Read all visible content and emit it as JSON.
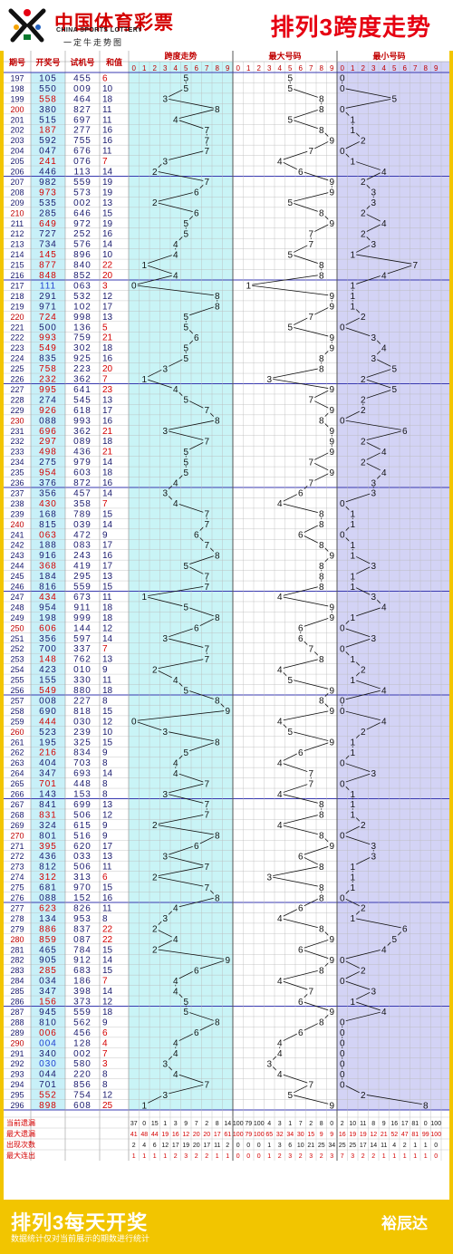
{
  "header": {
    "logo_cn": "中国体育彩票",
    "logo_en": "CHINA SPORTS LOTTERY",
    "logo_slogan": "一定牛走势图",
    "title": "排列3跨度走势"
  },
  "table": {
    "col_labels": [
      "期号",
      "开奖号",
      "试机号",
      "和值"
    ],
    "group_labels": [
      "跨度走势",
      "最大号码",
      "最小号码"
    ],
    "digits": [
      "0",
      "1",
      "2",
      "3",
      "4",
      "5",
      "6",
      "7",
      "8",
      "9"
    ],
    "stat_labels": [
      "当前遗漏",
      "最大遗漏",
      "出现次数",
      "最大连出"
    ],
    "stats": [
      [
        [
          37,
          0,
          15,
          1,
          3,
          9,
          7,
          2,
          8,
          14
        ],
        [
          100,
          79,
          100,
          4,
          3,
          1,
          7,
          2,
          8,
          0
        ],
        [
          2,
          10,
          11,
          8,
          9,
          16,
          17,
          81,
          0,
          100
        ]
      ],
      [
        [
          41,
          48,
          44,
          19,
          16,
          12,
          20,
          20,
          17,
          61
        ],
        [
          100,
          79,
          100,
          65,
          32,
          34,
          30,
          15,
          9,
          9
        ],
        [
          16,
          19,
          19,
          12,
          21,
          52,
          47,
          81,
          99,
          100
        ]
      ],
      [
        [
          2,
          4,
          6,
          12,
          17,
          19,
          20,
          17,
          11,
          2
        ],
        [
          0,
          0,
          0,
          1,
          3,
          6,
          10,
          21,
          25,
          34
        ],
        [
          25,
          25,
          17,
          14,
          11,
          4,
          2,
          1,
          1,
          0
        ]
      ],
      [
        [
          1,
          1,
          1,
          1,
          2,
          3,
          2,
          2,
          1,
          1
        ],
        [
          0,
          0,
          0,
          1,
          2,
          3,
          2,
          3,
          2,
          3
        ],
        [
          7,
          3,
          2,
          2,
          1,
          1,
          1,
          1,
          1,
          0
        ]
      ]
    ]
  },
  "chart_data": {
    "type": "table",
    "columns": [
      "期号",
      "开奖号",
      "试机号",
      "和值",
      "跨度",
      "最大号码",
      "最小号码"
    ],
    "rows": [
      [
        "197",
        "105",
        "455",
        "6",
        5,
        5,
        0
      ],
      [
        "198",
        "550",
        "009",
        "10",
        5,
        5,
        0
      ],
      [
        "199",
        "558",
        "464",
        "18",
        3,
        8,
        5
      ],
      [
        "200",
        "380",
        "827",
        "11",
        8,
        8,
        0
      ],
      [
        "201",
        "515",
        "697",
        "11",
        4,
        5,
        1
      ],
      [
        "202",
        "187",
        "277",
        "16",
        7,
        8,
        1
      ],
      [
        "203",
        "592",
        "755",
        "16",
        7,
        9,
        2
      ],
      [
        "204",
        "047",
        "676",
        "11",
        7,
        7,
        0
      ],
      [
        "205",
        "241",
        "076",
        "7",
        3,
        4,
        1
      ],
      [
        "206",
        "446",
        "113",
        "14",
        2,
        6,
        4
      ],
      [
        "207",
        "982",
        "559",
        "19",
        7,
        9,
        2
      ],
      [
        "208",
        "973",
        "573",
        "19",
        6,
        9,
        3
      ],
      [
        "209",
        "535",
        "002",
        "13",
        2,
        5,
        3
      ],
      [
        "210",
        "285",
        "646",
        "15",
        6,
        8,
        2
      ],
      [
        "211",
        "649",
        "972",
        "19",
        5,
        9,
        4
      ],
      [
        "212",
        "727",
        "252",
        "16",
        5,
        7,
        2
      ],
      [
        "213",
        "734",
        "576",
        "14",
        4,
        7,
        3
      ],
      [
        "214",
        "145",
        "896",
        "10",
        4,
        5,
        1
      ],
      [
        "215",
        "877",
        "840",
        "22",
        1,
        8,
        7
      ],
      [
        "216",
        "848",
        "852",
        "20",
        4,
        8,
        4
      ],
      [
        "217",
        "111",
        "063",
        "3",
        0,
        1,
        1
      ],
      [
        "218",
        "291",
        "532",
        "12",
        8,
        9,
        1
      ],
      [
        "219",
        "971",
        "102",
        "17",
        8,
        9,
        1
      ],
      [
        "220",
        "724",
        "998",
        "13",
        5,
        7,
        2
      ],
      [
        "221",
        "500",
        "136",
        "5",
        5,
        5,
        0
      ],
      [
        "222",
        "993",
        "759",
        "21",
        6,
        9,
        3
      ],
      [
        "223",
        "549",
        "302",
        "18",
        5,
        9,
        4
      ],
      [
        "224",
        "835",
        "925",
        "16",
        5,
        8,
        3
      ],
      [
        "225",
        "758",
        "223",
        "20",
        3,
        8,
        5
      ],
      [
        "226",
        "232",
        "362",
        "7",
        1,
        3,
        2
      ],
      [
        "227",
        "995",
        "641",
        "23",
        4,
        9,
        5
      ],
      [
        "228",
        "274",
        "545",
        "13",
        5,
        7,
        2
      ],
      [
        "229",
        "926",
        "618",
        "17",
        7,
        9,
        2
      ],
      [
        "230",
        "088",
        "993",
        "16",
        8,
        8,
        0
      ],
      [
        "231",
        "696",
        "362",
        "21",
        3,
        9,
        6
      ],
      [
        "232",
        "297",
        "089",
        "18",
        7,
        9,
        2
      ],
      [
        "233",
        "498",
        "436",
        "21",
        5,
        9,
        4
      ],
      [
        "234",
        "275",
        "979",
        "14",
        5,
        7,
        2
      ],
      [
        "235",
        "954",
        "603",
        "18",
        5,
        9,
        4
      ],
      [
        "236",
        "376",
        "872",
        "16",
        4,
        7,
        3
      ],
      [
        "237",
        "356",
        "457",
        "14",
        3,
        6,
        3
      ],
      [
        "238",
        "430",
        "358",
        "7",
        4,
        4,
        0
      ],
      [
        "239",
        "168",
        "789",
        "15",
        7,
        8,
        1
      ],
      [
        "240",
        "815",
        "039",
        "14",
        7,
        8,
        1
      ],
      [
        "241",
        "063",
        "472",
        "9",
        6,
        6,
        0
      ],
      [
        "242",
        "188",
        "083",
        "17",
        7,
        8,
        1
      ],
      [
        "243",
        "916",
        "243",
        "16",
        8,
        9,
        1
      ],
      [
        "244",
        "368",
        "419",
        "17",
        5,
        8,
        3
      ],
      [
        "245",
        "184",
        "295",
        "13",
        7,
        8,
        1
      ],
      [
        "246",
        "816",
        "559",
        "15",
        7,
        8,
        1
      ],
      [
        "247",
        "434",
        "673",
        "11",
        1,
        4,
        3
      ],
      [
        "248",
        "954",
        "911",
        "18",
        5,
        9,
        4
      ],
      [
        "249",
        "198",
        "999",
        "18",
        8,
        9,
        1
      ],
      [
        "250",
        "606",
        "144",
        "12",
        6,
        6,
        0
      ],
      [
        "251",
        "356",
        "597",
        "14",
        3,
        6,
        3
      ],
      [
        "252",
        "700",
        "337",
        "7",
        7,
        7,
        0
      ],
      [
        "253",
        "148",
        "762",
        "13",
        7,
        8,
        1
      ],
      [
        "254",
        "423",
        "010",
        "9",
        2,
        4,
        2
      ],
      [
        "255",
        "155",
        "330",
        "11",
        4,
        5,
        1
      ],
      [
        "256",
        "549",
        "880",
        "18",
        5,
        9,
        4
      ],
      [
        "257",
        "008",
        "227",
        "8",
        8,
        8,
        0
      ],
      [
        "258",
        "690",
        "818",
        "15",
        9,
        9,
        0
      ],
      [
        "259",
        "444",
        "030",
        "12",
        0,
        4,
        4
      ],
      [
        "260",
        "523",
        "239",
        "10",
        3,
        5,
        2
      ],
      [
        "261",
        "195",
        "325",
        "15",
        8,
        9,
        1
      ],
      [
        "262",
        "216",
        "834",
        "9",
        5,
        6,
        1
      ],
      [
        "263",
        "404",
        "703",
        "8",
        4,
        4,
        0
      ],
      [
        "264",
        "347",
        "693",
        "14",
        4,
        7,
        3
      ],
      [
        "265",
        "701",
        "448",
        "8",
        7,
        7,
        0
      ],
      [
        "266",
        "143",
        "153",
        "8",
        3,
        4,
        1
      ],
      [
        "267",
        "841",
        "699",
        "13",
        7,
        8,
        1
      ],
      [
        "268",
        "831",
        "506",
        "12",
        7,
        8,
        1
      ],
      [
        "269",
        "324",
        "615",
        "9",
        2,
        4,
        2
      ],
      [
        "270",
        "801",
        "516",
        "9",
        8,
        8,
        0
      ],
      [
        "271",
        "395",
        "620",
        "17",
        6,
        9,
        3
      ],
      [
        "272",
        "436",
        "033",
        "13",
        3,
        6,
        3
      ],
      [
        "273",
        "812",
        "506",
        "11",
        7,
        8,
        1
      ],
      [
        "274",
        "312",
        "313",
        "6",
        2,
        3,
        1
      ],
      [
        "275",
        "681",
        "970",
        "15",
        7,
        8,
        1
      ],
      [
        "276",
        "088",
        "152",
        "16",
        8,
        8,
        0
      ],
      [
        "277",
        "623",
        "826",
        "11",
        4,
        6,
        2
      ],
      [
        "278",
        "134",
        "953",
        "8",
        3,
        4,
        1
      ],
      [
        "279",
        "886",
        "837",
        "22",
        2,
        8,
        6
      ],
      [
        "280",
        "859",
        "087",
        "22",
        4,
        9,
        5
      ],
      [
        "281",
        "465",
        "784",
        "15",
        2,
        6,
        4
      ],
      [
        "282",
        "905",
        "912",
        "14",
        9,
        9,
        0
      ],
      [
        "283",
        "285",
        "683",
        "15",
        6,
        8,
        2
      ],
      [
        "284",
        "034",
        "186",
        "7",
        4,
        4,
        0
      ],
      [
        "285",
        "347",
        "398",
        "14",
        4,
        7,
        3
      ],
      [
        "286",
        "156",
        "373",
        "12",
        5,
        6,
        1
      ],
      [
        "287",
        "945",
        "559",
        "18",
        5,
        9,
        4
      ],
      [
        "288",
        "810",
        "562",
        "9",
        8,
        8,
        0
      ],
      [
        "289",
        "006",
        "456",
        "6",
        6,
        6,
        0
      ],
      [
        "290",
        "004",
        "128",
        "4",
        4,
        4,
        0
      ],
      [
        "291",
        "340",
        "002",
        "7",
        4,
        4,
        0
      ],
      [
        "292",
        "030",
        "580",
        "3",
        3,
        3,
        0
      ],
      [
        "293",
        "044",
        "220",
        "8",
        4,
        4,
        0
      ],
      [
        "294",
        "701",
        "856",
        "8",
        7,
        7,
        0
      ],
      [
        "295",
        "552",
        "754",
        "12",
        3,
        5,
        2
      ],
      [
        "296",
        "898",
        "608",
        "25",
        1,
        9,
        8
      ]
    ]
  },
  "footer": {
    "title": "排列3每天开奖",
    "note": "数据统计仅对当前展示的期数进行统计",
    "author": "裕辰达"
  }
}
